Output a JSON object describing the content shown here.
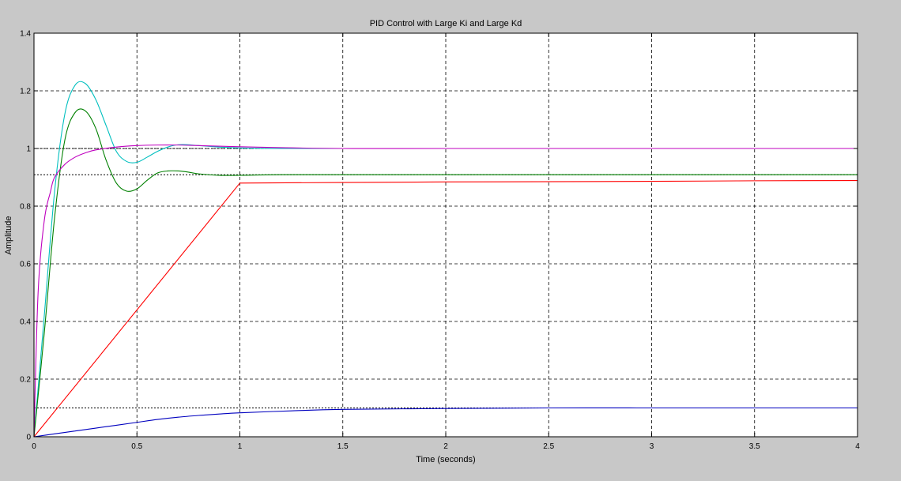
{
  "figure": {
    "background": "#c8c8c8"
  },
  "chart_data": {
    "type": "line",
    "title": "PID Control with Large Ki and Large Kd",
    "xlabel": "Time (seconds)",
    "ylabel": "Amplitude",
    "xlim": [
      0,
      4
    ],
    "ylim": [
      0,
      1.4
    ],
    "grid": true,
    "xticks": [
      0,
      0.5,
      1,
      1.5,
      2,
      2.5,
      3,
      3.5,
      4
    ],
    "xtick_labels": [
      "0",
      "0.5",
      "1",
      "1.5",
      "2",
      "2.5",
      "3",
      "3.5",
      "4"
    ],
    "yticks": [
      0,
      0.2,
      0.4,
      0.6,
      0.8,
      1.0,
      1.2,
      1.4
    ],
    "ytick_labels": [
      "0",
      "0.2",
      "0.4",
      "0.6",
      "0.8",
      "1",
      "1.2",
      "1.4"
    ],
    "reference_lines": [
      {
        "y": 1.0,
        "color": "#000000",
        "style": "dotted"
      },
      {
        "y": 0.909,
        "color": "#000000",
        "style": "dotted"
      },
      {
        "y": 0.1,
        "color": "#000000",
        "style": "dotted"
      }
    ],
    "series": [
      {
        "color": "#00bfbf",
        "x": [
          0,
          0.05,
          0.1,
          0.15,
          0.2,
          0.25,
          0.3,
          0.35,
          0.4,
          0.45,
          0.5,
          0.55,
          0.6,
          0.65,
          0.7,
          0.75,
          0.8,
          0.9,
          1.0,
          1.2,
          1.5,
          2,
          3,
          4
        ],
        "y": [
          0,
          0.42,
          0.85,
          1.12,
          1.22,
          1.225,
          1.17,
          1.08,
          0.99,
          0.955,
          0.952,
          0.97,
          0.99,
          1.005,
          1.013,
          1.013,
          1.01,
          1.005,
          1.002,
          1.0,
          1.0,
          1.0,
          1.0,
          1.0
        ]
      },
      {
        "color": "#008000",
        "x": [
          0,
          0.05,
          0.1,
          0.15,
          0.2,
          0.25,
          0.3,
          0.35,
          0.4,
          0.45,
          0.5,
          0.55,
          0.6,
          0.65,
          0.7,
          0.75,
          0.8,
          0.9,
          1.0,
          1.2,
          1.5,
          2,
          3,
          4
        ],
        "y": [
          0,
          0.36,
          0.76,
          1.03,
          1.125,
          1.13,
          1.07,
          0.96,
          0.88,
          0.852,
          0.86,
          0.89,
          0.915,
          0.922,
          0.922,
          0.918,
          0.912,
          0.907,
          0.907,
          0.909,
          0.909,
          0.909,
          0.909,
          0.909
        ]
      },
      {
        "color": "#bf00bf",
        "x": [
          0,
          0.02,
          0.05,
          0.08,
          0.1,
          0.15,
          0.2,
          0.25,
          0.3,
          0.4,
          0.5,
          0.6,
          0.7,
          0.8,
          1.0,
          1.2,
          1.5,
          2,
          3,
          4
        ],
        "y": [
          0,
          0.5,
          0.75,
          0.85,
          0.9,
          0.945,
          0.97,
          0.985,
          0.995,
          1.005,
          1.01,
          1.012,
          1.012,
          1.01,
          1.006,
          1.003,
          1.0,
          1.0,
          1.0,
          1.0
        ]
      },
      {
        "color": "#ff0000",
        "x": [
          0,
          1.0,
          1.5,
          2,
          3,
          3.5,
          4
        ],
        "y": [
          0,
          0.88,
          0.882,
          0.884,
          0.886,
          0.888,
          0.889
        ]
      },
      {
        "color": "#0000bf",
        "x": [
          0,
          0.1,
          0.2,
          0.3,
          0.4,
          0.5,
          0.6,
          0.7,
          0.8,
          0.9,
          1.0,
          1.25,
          1.5,
          2,
          2.5,
          3,
          3.5,
          4
        ],
        "y": [
          0,
          0.01,
          0.02,
          0.03,
          0.04,
          0.05,
          0.06,
          0.068,
          0.074,
          0.079,
          0.083,
          0.09,
          0.095,
          0.098,
          0.1,
          0.1,
          0.1,
          0.1
        ]
      }
    ]
  }
}
